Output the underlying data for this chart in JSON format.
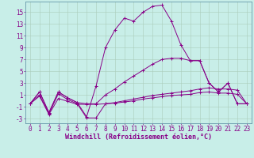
{
  "xlabel": "Windchill (Refroidissement éolien,°C)",
  "background_color": "#c8eee8",
  "grid_color": "#aaccbb",
  "line_color": "#880088",
  "xlim": [
    -0.5,
    23.5
  ],
  "ylim": [
    -3.8,
    16.8
  ],
  "yticks": [
    -3,
    -1,
    1,
    3,
    5,
    7,
    9,
    11,
    13,
    15
  ],
  "xticks": [
    0,
    1,
    2,
    3,
    4,
    5,
    6,
    7,
    8,
    9,
    10,
    11,
    12,
    13,
    14,
    15,
    16,
    17,
    18,
    19,
    20,
    21,
    22,
    23
  ],
  "line1_y": [
    -0.5,
    1.5,
    -2.0,
    1.5,
    0.5,
    -0.3,
    -2.7,
    2.5,
    9.0,
    12.0,
    14.0,
    13.5,
    15.0,
    16.0,
    16.2,
    13.5,
    9.5,
    6.8,
    6.8,
    3.0,
    1.5,
    3.0,
    -0.5,
    -0.5
  ],
  "line2_y": [
    -0.5,
    1.5,
    -2.0,
    1.5,
    0.5,
    -0.3,
    -0.5,
    -0.5,
    1.0,
    2.0,
    3.2,
    4.2,
    5.2,
    6.2,
    7.0,
    7.2,
    7.2,
    6.8,
    6.8,
    3.0,
    1.5,
    3.0,
    -0.5,
    -0.5
  ],
  "line3_y": [
    -0.5,
    1.0,
    -2.2,
    1.2,
    0.2,
    -0.5,
    -2.9,
    -2.9,
    -0.5,
    -0.3,
    0.0,
    0.3,
    0.6,
    0.9,
    1.1,
    1.3,
    1.5,
    1.7,
    2.0,
    2.2,
    2.0,
    2.0,
    1.8,
    -0.5
  ],
  "line4_y": [
    -0.5,
    0.8,
    -2.3,
    0.4,
    -0.1,
    -0.6,
    -0.6,
    -0.6,
    -0.5,
    -0.4,
    -0.2,
    0.0,
    0.3,
    0.5,
    0.7,
    0.9,
    1.0,
    1.1,
    1.4,
    1.5,
    1.3,
    1.3,
    1.1,
    -0.5
  ],
  "tick_fontsize": 5.5,
  "xlabel_fontsize": 6.0,
  "fig_width": 3.2,
  "fig_height": 2.0,
  "dpi": 100
}
